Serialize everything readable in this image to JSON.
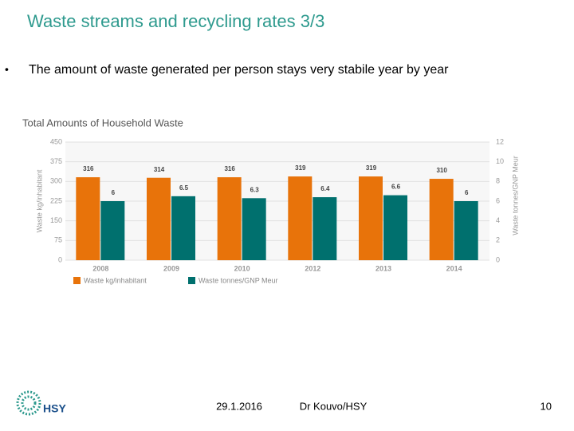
{
  "slide": {
    "title": "Waste streams and recycling rates 3/3",
    "bullet": "The amount of waste generated per person stays very stabile year by year",
    "date": "29.1.2016",
    "author": "Dr Kouvo/HSY",
    "page": "10",
    "logo": "HSY"
  },
  "chart_data": {
    "type": "bar",
    "title": "Total Amounts of Household Waste",
    "categories": [
      "2008",
      "2009",
      "2010",
      "2012",
      "2013",
      "2014"
    ],
    "series": [
      {
        "name": "Waste kg/inhabitant",
        "color": "#e8730a",
        "values": [
          316,
          314,
          316,
          319,
          319,
          310
        ]
      },
      {
        "name": "Waste tonnes/GNP Meur",
        "color": "#00706e",
        "axis": "y2",
        "values": [
          6,
          6.5,
          6.3,
          6.4,
          6.6,
          6
        ]
      }
    ],
    "ylabel": "Waste kg/inhabitant",
    "y2label": "Waste tonnes/GNP Meur",
    "ylim": [
      0,
      450
    ],
    "yticks": [
      0,
      75,
      150,
      225,
      300,
      375,
      450
    ],
    "y2lim": [
      0,
      12
    ],
    "y2ticks": [
      0,
      2,
      4,
      6,
      8,
      10,
      12
    ],
    "grid": true,
    "legend": "bottom"
  }
}
